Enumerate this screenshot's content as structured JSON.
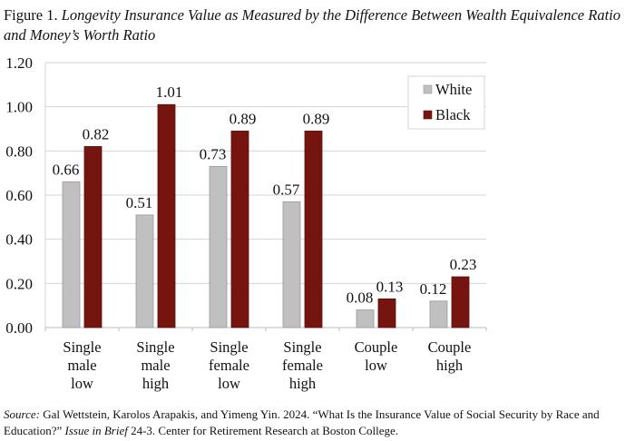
{
  "title": {
    "prefix": "Figure 1.",
    "text": "Longevity Insurance Value as Measured by the Difference Between Wealth Equivalence Ratio and Money’s Worth Ratio"
  },
  "chart_data": {
    "type": "bar",
    "categories": [
      [
        "Single",
        "male",
        "low"
      ],
      [
        "Single",
        "male",
        "high"
      ],
      [
        "Single",
        "female",
        "low"
      ],
      [
        "Single",
        "female",
        "high"
      ],
      [
        "Couple",
        "low"
      ],
      [
        "Couple",
        "high"
      ]
    ],
    "series": [
      {
        "name": "White",
        "color": "#c0c0c0",
        "values": [
          0.66,
          0.51,
          0.73,
          0.57,
          0.08,
          0.12
        ],
        "labels": [
          "0.66",
          "0.51",
          "0.73",
          "0.57",
          "0.08",
          "0.12"
        ]
      },
      {
        "name": "Black",
        "color": "#76150f",
        "values": [
          0.82,
          1.01,
          0.89,
          0.89,
          0.13,
          0.23
        ],
        "labels": [
          "0.82",
          "1.01",
          "0.89",
          "0.89",
          "0.13",
          "0.23"
        ]
      }
    ],
    "ylim": [
      0,
      1.2
    ],
    "yticks": [
      "0.00",
      "0.20",
      "0.40",
      "0.60",
      "0.80",
      "1.00",
      "1.20"
    ],
    "grid": true,
    "legend": "top-right"
  },
  "source": {
    "label": "Source:",
    "text1": " Gal Wettstein, Karolos Arapakis, and Yimeng Yin. 2024. “What Is the Insurance Value of Social Security by Race and Education?” ",
    "issue": "Issue in Brief",
    "text2": " 24-3. Center for Retirement Research at Boston College."
  }
}
